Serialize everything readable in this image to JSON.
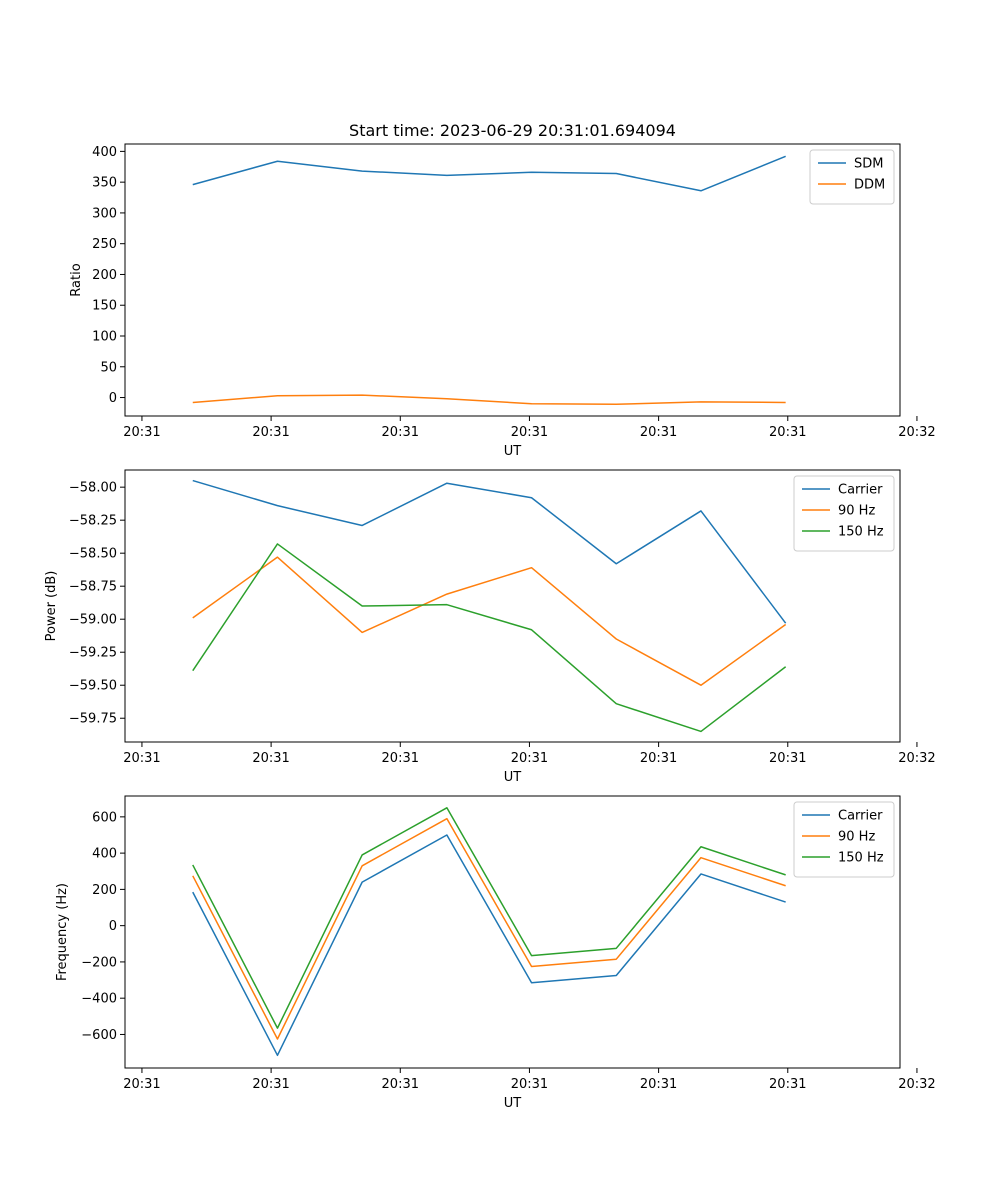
{
  "figure": {
    "title": "Start time: 2023-06-29 20:31:01.694094"
  },
  "chart_data": [
    {
      "type": "line",
      "xlabel": "UT",
      "ylabel": "Ratio",
      "x": [
        1,
        2,
        3,
        4,
        5,
        6,
        7,
        8
      ],
      "xlim": [
        0.2,
        9.35
      ],
      "x_ticks": [
        {
          "value": 0.4,
          "label": "20:31"
        },
        {
          "value": 1.925,
          "label": "20:31"
        },
        {
          "value": 3.45,
          "label": "20:31"
        },
        {
          "value": 4.975,
          "label": "20:31"
        },
        {
          "value": 6.5,
          "label": "20:31"
        },
        {
          "value": 8.025,
          "label": "20:31"
        },
        {
          "value": 9.55,
          "label": "20:32"
        }
      ],
      "ylim": [
        -30,
        412
      ],
      "y_ticks": [
        0,
        50,
        100,
        150,
        200,
        250,
        300,
        350,
        400
      ],
      "legend_position": "upper right",
      "series": [
        {
          "name": "SDM",
          "color": "#1f77b4",
          "values": [
            346,
            384,
            368,
            361,
            366,
            364,
            336,
            392
          ]
        },
        {
          "name": "DDM",
          "color": "#ff7f0e",
          "values": [
            -8,
            3,
            4,
            -2,
            -10,
            -11,
            -7,
            -8
          ]
        }
      ]
    },
    {
      "type": "line",
      "xlabel": "UT",
      "ylabel": "Power (dB)",
      "x": [
        1,
        2,
        3,
        4,
        5,
        6,
        7,
        8
      ],
      "xlim": [
        0.2,
        9.35
      ],
      "x_ticks": [
        {
          "value": 0.4,
          "label": "20:31"
        },
        {
          "value": 1.925,
          "label": "20:31"
        },
        {
          "value": 3.45,
          "label": "20:31"
        },
        {
          "value": 4.975,
          "label": "20:31"
        },
        {
          "value": 6.5,
          "label": "20:31"
        },
        {
          "value": 8.025,
          "label": "20:31"
        },
        {
          "value": 9.55,
          "label": "20:32"
        }
      ],
      "ylim": [
        -59.93,
        -57.87
      ],
      "y_ticks": [
        {
          "value": -58.0,
          "label": "−58.00"
        },
        {
          "value": -58.25,
          "label": "−58.25"
        },
        {
          "value": -58.5,
          "label": "−58.50"
        },
        {
          "value": -58.75,
          "label": "−58.75"
        },
        {
          "value": -59.0,
          "label": "−59.00"
        },
        {
          "value": -59.25,
          "label": "−59.25"
        },
        {
          "value": -59.5,
          "label": "−59.50"
        },
        {
          "value": -59.75,
          "label": "−59.75"
        }
      ],
      "legend_position": "upper right",
      "series": [
        {
          "name": "Carrier",
          "color": "#1f77b4",
          "values": [
            -57.95,
            -58.14,
            -58.29,
            -57.97,
            -58.08,
            -58.58,
            -58.18,
            -59.03
          ]
        },
        {
          "name": "90 Hz",
          "color": "#ff7f0e",
          "values": [
            -58.99,
            -58.53,
            -59.1,
            -58.81,
            -58.61,
            -59.15,
            -59.5,
            -59.04
          ]
        },
        {
          "name": "150 Hz",
          "color": "#2ca02c",
          "values": [
            -59.39,
            -58.43,
            -58.9,
            -58.89,
            -59.08,
            -59.64,
            -59.85,
            -59.36
          ]
        }
      ]
    },
    {
      "type": "line",
      "xlabel": "UT",
      "ylabel": "Frequency (Hz)",
      "x": [
        1,
        2,
        3,
        4,
        5,
        6,
        7,
        8
      ],
      "xlim": [
        0.2,
        9.35
      ],
      "x_ticks": [
        {
          "value": 0.4,
          "label": "20:31"
        },
        {
          "value": 1.925,
          "label": "20:31"
        },
        {
          "value": 3.45,
          "label": "20:31"
        },
        {
          "value": 4.975,
          "label": "20:31"
        },
        {
          "value": 6.5,
          "label": "20:31"
        },
        {
          "value": 8.025,
          "label": "20:31"
        },
        {
          "value": 9.55,
          "label": "20:32"
        }
      ],
      "ylim": [
        -785,
        715
      ],
      "y_ticks": [
        {
          "value": 600,
          "label": "600"
        },
        {
          "value": 400,
          "label": "400"
        },
        {
          "value": 200,
          "label": "200"
        },
        {
          "value": 0,
          "label": "0"
        },
        {
          "value": -200,
          "label": "−200"
        },
        {
          "value": -400,
          "label": "−400"
        },
        {
          "value": -600,
          "label": "−600"
        }
      ],
      "legend_position": "upper right",
      "series": [
        {
          "name": "Carrier",
          "color": "#1f77b4",
          "values": [
            185,
            -715,
            240,
            500,
            -315,
            -275,
            285,
            130
          ]
        },
        {
          "name": "90 Hz",
          "color": "#ff7f0e",
          "values": [
            275,
            -625,
            330,
            590,
            -225,
            -185,
            375,
            220
          ]
        },
        {
          "name": "150 Hz",
          "color": "#2ca02c",
          "values": [
            335,
            -565,
            390,
            650,
            -165,
            -125,
            435,
            280
          ]
        }
      ]
    }
  ]
}
